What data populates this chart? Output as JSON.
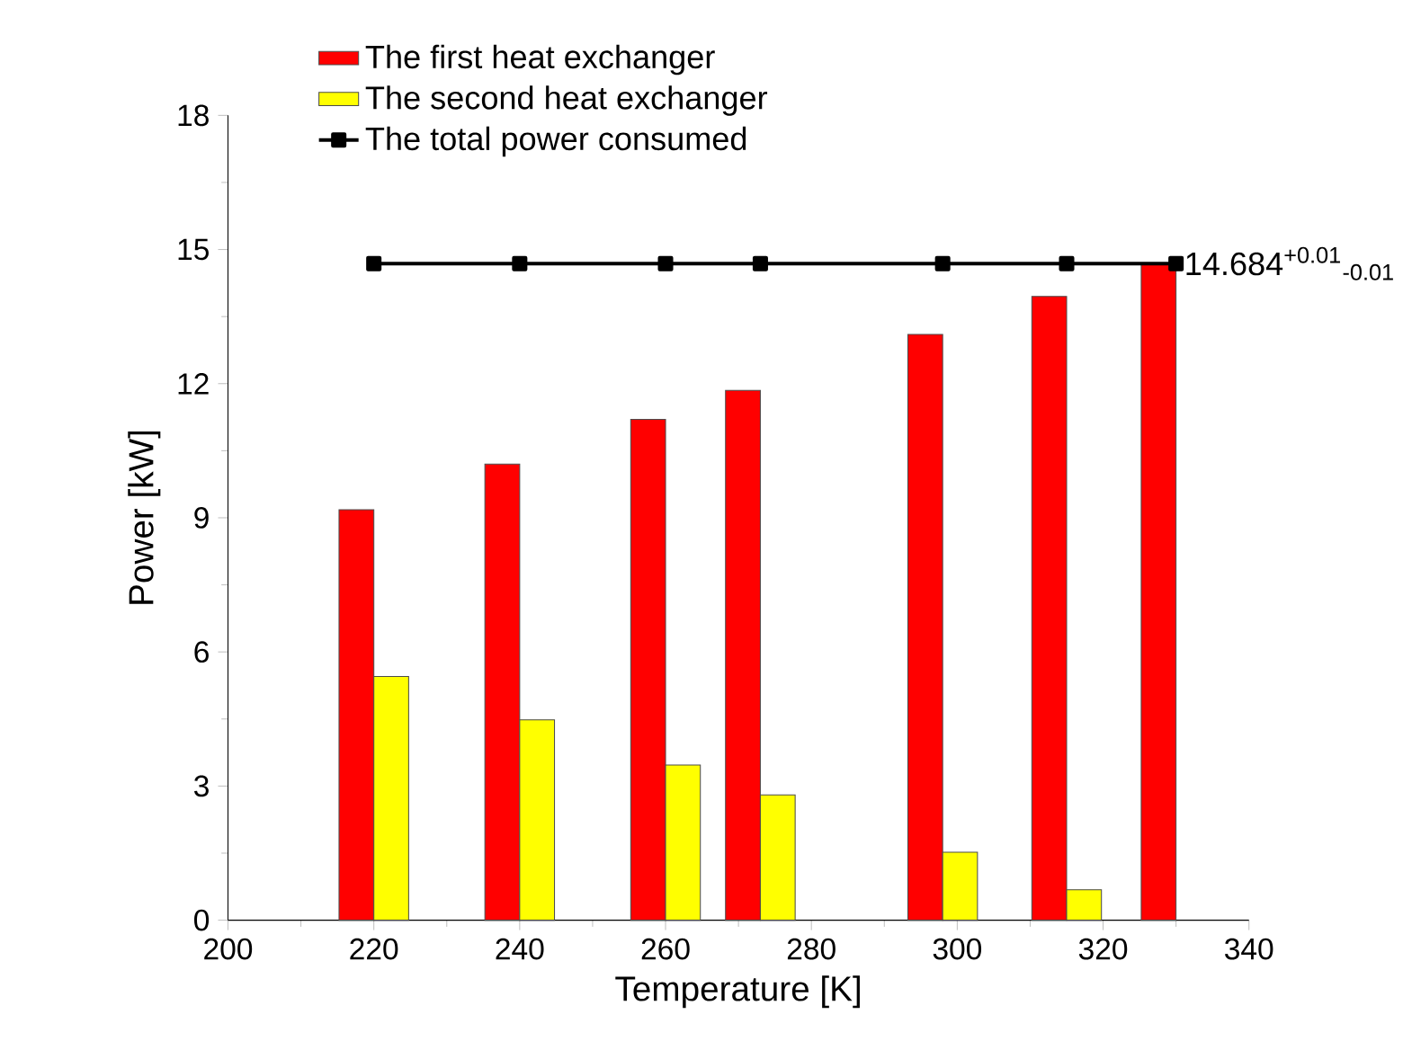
{
  "chart_data": {
    "type": "bar",
    "xlabel": "Temperature [K]",
    "ylabel": "Power [kW]",
    "x": [
      220,
      240,
      260,
      273,
      298,
      315,
      330
    ],
    "series": [
      {
        "name": "The first heat exchanger",
        "color": "#ff0000",
        "values": [
          9.18,
          10.2,
          11.2,
          11.85,
          13.1,
          13.95,
          14.68
        ]
      },
      {
        "name": "The second heat exchanger",
        "color": "#ffff00",
        "values": [
          5.45,
          4.48,
          3.47,
          2.8,
          1.52,
          0.68,
          null
        ]
      },
      {
        "name": "The total power consumed",
        "type": "line",
        "color": "#000000",
        "marker": "square",
        "line_style": "solid",
        "values": [
          14.684,
          14.684,
          14.684,
          14.684,
          14.684,
          14.684,
          14.684
        ]
      }
    ],
    "xlim": [
      200,
      340
    ],
    "xticks": [
      200,
      220,
      240,
      260,
      280,
      300,
      320,
      340
    ],
    "ylim": [
      0,
      18
    ],
    "yticks": [
      0,
      3,
      6,
      9,
      12,
      15,
      18
    ],
    "annotations": [
      {
        "text": "14.684$^{+0.01}$$_{-0.01}$",
        "x": 330,
        "y": 14.684
      }
    ],
    "legend": "top left",
    "grid": false
  }
}
